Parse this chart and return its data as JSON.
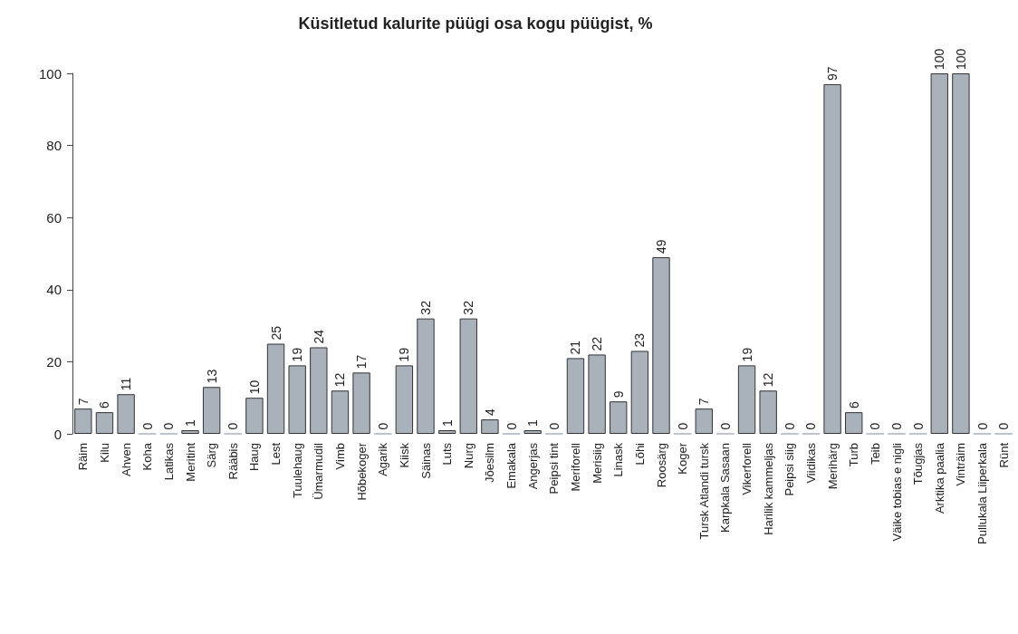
{
  "chart_data": {
    "type": "bar",
    "title": "Küsitletud kalurite püügi osa kogu püügist, %",
    "categories": [
      "Räim",
      "Kilu",
      "Ahven",
      "Koha",
      "Latikas",
      "Meritint",
      "Särg",
      "Rääbis",
      "Haug",
      "Lest",
      "Tuulehaug",
      "Ümarmudil",
      "Vimb",
      "Hõbekoger",
      "Agarik",
      "Kiisk",
      "Säinas",
      "Luts",
      "Nurg",
      "Jõesilm",
      "Emakala",
      "Angerjas",
      "Peipsi tint",
      "Meriforell",
      "Merisiig",
      "Linask",
      "Lõhi",
      "Roosärg",
      "Koger",
      "Tursk Atlandi tursk",
      "Karpkala Sasaan",
      "Vikerforell",
      "Harilik kammeljas",
      "Peipsi siig",
      "Viidikas",
      "Merihärg",
      "Turb",
      "Teib",
      "Väike tobias e nigli",
      "Tõugjas",
      "Arktika paalia",
      "Vinträim",
      "Pullukala Liiperkala",
      "Rünt"
    ],
    "values": [
      7,
      6,
      11,
      0,
      0,
      1,
      13,
      0,
      10,
      25,
      19,
      24,
      12,
      17,
      0,
      19,
      32,
      1,
      32,
      4,
      0,
      1,
      0,
      21,
      22,
      9,
      23,
      49,
      0,
      7,
      0,
      19,
      12,
      0,
      0,
      97,
      6,
      0,
      0,
      0,
      100,
      100,
      0,
      0
    ],
    "color": "#a9b1bb",
    "ylim": [
      0,
      100
    ],
    "yticks": [
      0,
      20,
      40,
      60,
      80,
      100
    ],
    "grid": false,
    "data_labels": true
  }
}
